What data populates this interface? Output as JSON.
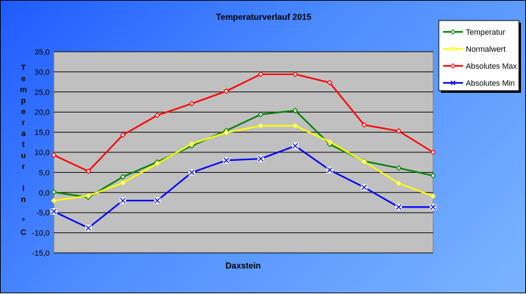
{
  "chart_data": {
    "type": "line",
    "title": "Temperaturverlauf  2015",
    "xlabel": "Daxstein",
    "ylabel": "Temperatur in °C",
    "ylabel_chars": [
      "T",
      "e",
      "m",
      "p",
      "e",
      "r",
      "a",
      "t",
      "u",
      "r",
      "",
      "i",
      "n",
      "",
      "°",
      "C"
    ],
    "ylim": [
      -15,
      35
    ],
    "yticks": [
      35,
      30,
      25,
      20,
      15,
      10,
      5,
      0,
      -5,
      -10,
      -15
    ],
    "ytick_labels": [
      "35,0",
      "30,0",
      "25,0",
      "20,0",
      "15,0",
      "10,0",
      "5,0",
      "0,0",
      "-5,0",
      "-10,0",
      "-15,0"
    ],
    "grid": true,
    "legend_position": "top-right",
    "x": [
      1,
      2,
      3,
      4,
      5,
      6,
      7,
      8,
      9,
      10,
      11,
      12
    ],
    "series": [
      {
        "name": "Temperatur",
        "color": "#008000",
        "marker": "diamond",
        "values": [
          0.1,
          -1.2,
          3.9,
          7.6,
          11.6,
          15.4,
          19.4,
          20.4,
          12.0,
          7.8,
          6.1,
          4.2
        ]
      },
      {
        "name": "Normalwert",
        "color": "#ffff00",
        "marker": "diamond",
        "values": [
          -2.0,
          -0.8,
          2.4,
          7.2,
          12.1,
          14.9,
          16.6,
          16.6,
          12.6,
          7.7,
          2.3,
          -0.9
        ]
      },
      {
        "name": "Absolutes Max",
        "color": "#ff0000",
        "marker": "diamond",
        "values": [
          9.3,
          5.3,
          14.3,
          19.2,
          22.1,
          25.2,
          29.4,
          29.4,
          27.3,
          16.8,
          15.3,
          10.0
        ]
      },
      {
        "name": "Absolutes Min",
        "color": "#0000ff",
        "marker": "x",
        "values": [
          -4.7,
          -8.8,
          -2.0,
          -2.0,
          5.0,
          8.0,
          8.4,
          11.6,
          5.6,
          1.3,
          -3.6,
          -3.6
        ]
      }
    ]
  }
}
